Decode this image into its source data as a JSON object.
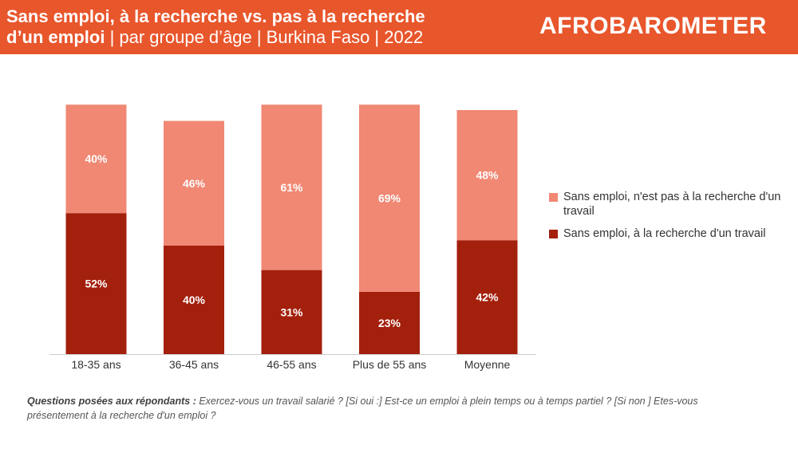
{
  "header": {
    "title_bold_1": "Sans emploi, à la recherche vs. pas à la recherche",
    "title_bold_2": "d’un emploi",
    "title_rest": " | par  groupe d’âge | Burkina Faso | 2022",
    "logo": "AFROBAROMETER",
    "background_color": "#e8562c"
  },
  "chart_data": {
    "type": "bar",
    "stacked": true,
    "categories": [
      "18-35 ans",
      "36-45 ans",
      "46-55 ans",
      "Plus de 55 ans",
      "Moyenne"
    ],
    "series": [
      {
        "name": "Sans emploi, à la recherche d'un travail",
        "values": [
          52,
          40,
          31,
          23,
          42
        ],
        "labels": [
          "52%",
          "40%",
          "31%",
          "23%",
          "42%"
        ],
        "color": "#a3200d"
      },
      {
        "name": "Sans emploi, n'est pas à la recherche d'un travail",
        "values": [
          40,
          46,
          61,
          69,
          48
        ],
        "labels": [
          "40%",
          "46%",
          "61%",
          "69%",
          "48%"
        ],
        "color": "#f08874"
      }
    ],
    "ylim": [
      0,
      100
    ],
    "grid": false,
    "legend_position": "right"
  },
  "legend": {
    "items": [
      {
        "label": "Sans emploi, n'est pas à la recherche d'un travail",
        "color": "#f08874"
      },
      {
        "label": "Sans emploi, à la recherche d'un travail",
        "color": "#a3200d"
      }
    ]
  },
  "footnote": {
    "label": "Questions posées aux répondants :",
    "text": " Exercez-vous un travail salarié ? [Si oui :] Est-ce un emploi à plein temps ou à temps partiel ? [Si non ] Etes-vous présentement à la recherche d'un emploi ?"
  }
}
